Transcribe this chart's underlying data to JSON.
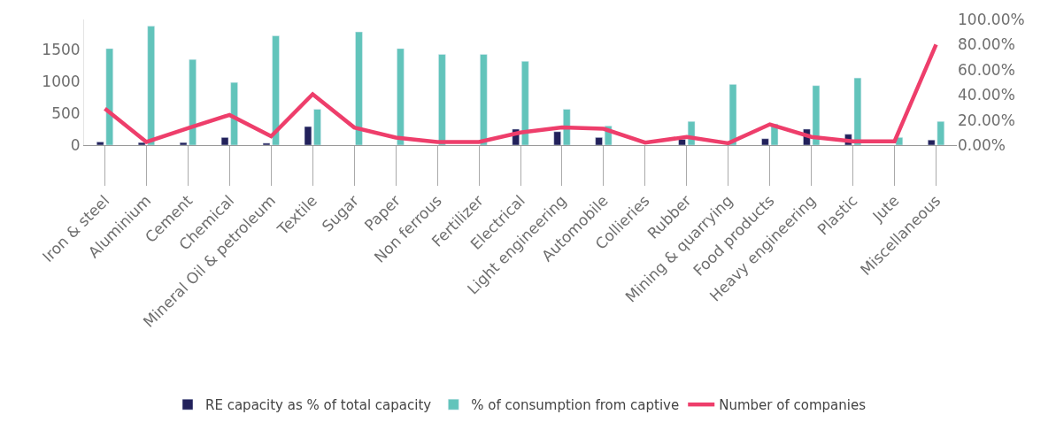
{
  "chart_data": {
    "type": "bar",
    "categories": [
      "Iron & steel",
      "Aluminium",
      "Cement",
      "Chemical",
      "Mineral Oil & petroleum",
      "Textile",
      "Sugar",
      "Paper",
      "Non ferrous",
      "Fertilizer",
      "Electrical",
      "Light engineering",
      "Automobile",
      "Collieries",
      "Rubber",
      "Mining & quarrying",
      "Food products",
      "Heavy engineering",
      "Plastic",
      "Jute",
      "Miscellaneous"
    ],
    "series": [
      {
        "name": "RE capacity as % of total capacity",
        "color": "#22215b",
        "values": [
          50,
          40,
          40,
          120,
          30,
          290,
          null,
          null,
          null,
          null,
          250,
          210,
          120,
          null,
          90,
          null,
          100,
          250,
          170,
          null,
          80
        ]
      },
      {
        "name": "% of consumption from captive",
        "color": "#62c4bb",
        "values": [
          1510,
          1860,
          1340,
          980,
          1710,
          560,
          1770,
          1510,
          1420,
          1420,
          1310,
          560,
          300,
          null,
          370,
          950,
          330,
          930,
          1050,
          120,
          370
        ]
      },
      {
        "name": "Number of companies",
        "type": "line",
        "axis": "y2",
        "color": "#ee3e6b",
        "values": [
          29,
          2.5,
          13.5,
          24,
          7,
          40.5,
          14,
          6,
          2.5,
          2.5,
          10,
          14,
          13,
          2,
          6.5,
          1.5,
          16.5,
          6.5,
          3,
          3,
          80
        ]
      }
    ],
    "ylim": [
      0,
      1965
    ],
    "yticks": [
      0,
      500,
      1000,
      1500
    ],
    "y2lim": [
      0,
      100
    ],
    "y2ticks": [
      {
        "value": 0,
        "label": "0.00%"
      },
      {
        "value": 20,
        "label": "20.00%"
      },
      {
        "value": 40,
        "label": "40.00%"
      },
      {
        "value": 60,
        "label": "60.00%"
      },
      {
        "value": 80,
        "label": "80.00%"
      },
      {
        "value": 100,
        "label": "100.00%"
      }
    ],
    "legend": "bottom",
    "marker": "none"
  }
}
